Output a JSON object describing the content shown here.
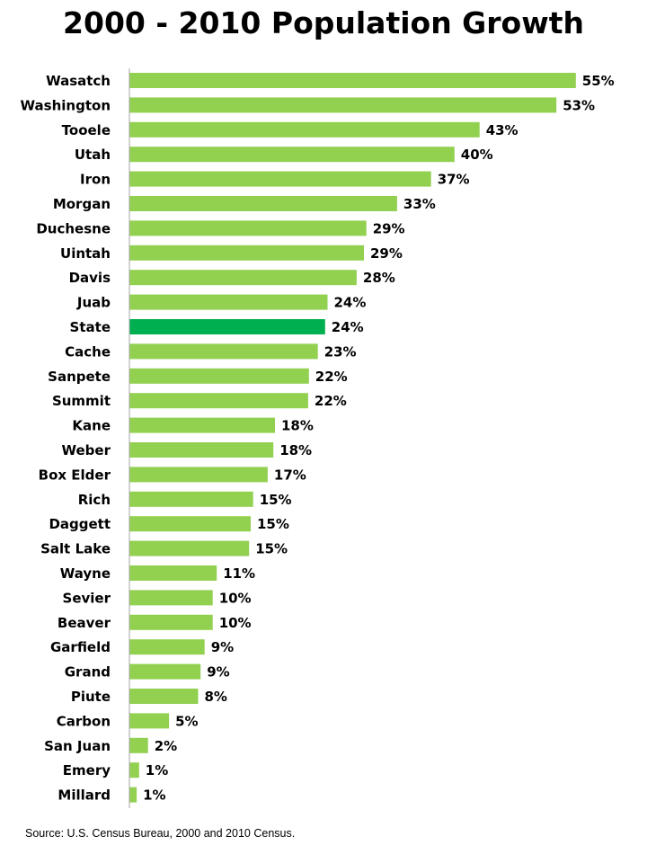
{
  "chart_data": {
    "type": "bar",
    "orientation": "horizontal",
    "title": "2000 - 2010 Population Growth",
    "xlabel": "",
    "ylabel": "",
    "xlim": [
      0,
      56
    ],
    "grid": false,
    "legend": "none",
    "categories": [
      "Wasatch",
      "Washington",
      "Tooele",
      "Utah",
      "Iron",
      "Morgan",
      "Duchesne",
      "Uintah",
      "Davis",
      "Juab",
      "State",
      "Cache",
      "Sanpete",
      "Summit",
      "Kane",
      "Weber",
      "Box Elder",
      "Rich",
      "Daggett",
      "Salt Lake",
      "Wayne",
      "Sevier",
      "Beaver",
      "Garfield",
      "Grand",
      "Piute",
      "Carbon",
      "San Juan",
      "Emery",
      "Millard"
    ],
    "values": [
      55,
      53,
      43,
      40,
      37,
      33,
      29,
      29,
      28,
      24,
      24,
      23,
      22,
      22,
      18,
      18,
      17,
      15,
      15,
      15,
      11,
      10,
      10,
      9,
      9,
      8,
      5,
      2,
      1,
      1
    ],
    "bar_lengths": [
      55.2,
      52.8,
      43.3,
      40.2,
      37.3,
      33.1,
      29.3,
      29.0,
      28.1,
      24.5,
      24.2,
      23.3,
      22.2,
      22.1,
      18.0,
      17.8,
      17.1,
      15.3,
      15.0,
      14.8,
      10.8,
      10.3,
      10.3,
      9.3,
      8.8,
      8.5,
      4.9,
      2.3,
      1.2,
      0.9
    ],
    "data_labels": [
      "55%",
      "53%",
      "43%",
      "40%",
      "37%",
      "33%",
      "29%",
      "29%",
      "28%",
      "24%",
      "24%",
      "23%",
      "22%",
      "22%",
      "18%",
      "18%",
      "17%",
      "15%",
      "15%",
      "15%",
      "11%",
      "10%",
      "10%",
      "9%",
      "9%",
      "8%",
      "5%",
      "2%",
      "1%",
      "1%"
    ],
    "highlight_category": "State",
    "colors": {
      "bar": "#92d050",
      "highlight": "#00b050",
      "axis": "#a6a6a6"
    }
  },
  "source_note": "Source: U.S. Census Bureau, 2000 and 2010 Census."
}
